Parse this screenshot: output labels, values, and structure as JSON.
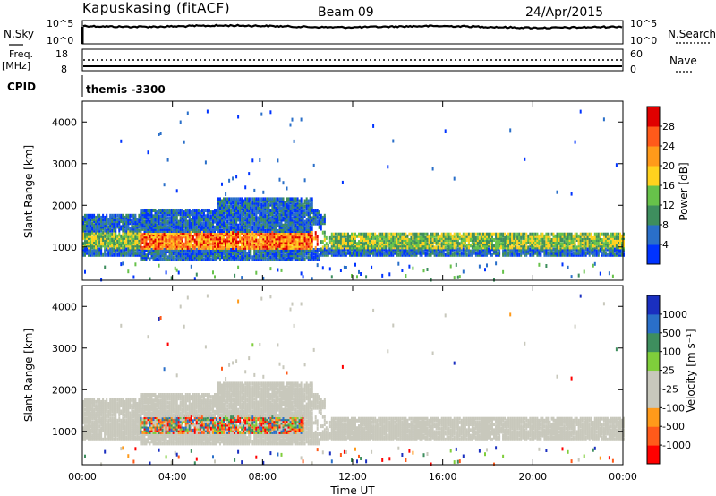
{
  "header": {
    "title": "Kapuskasing (fitACF)",
    "beam": "Beam 09",
    "date": "24/Apr/2015"
  },
  "cpid_text": "themis -3300",
  "top_panels": {
    "noise": {
      "left_label": "N.Sky",
      "right_label": "N.Search",
      "left_ticks": [
        "10^5",
        "10^0"
      ],
      "right_ticks": [
        "10^5",
        "10^0"
      ]
    },
    "freq": {
      "left_label": "Freq.",
      "left_unit": "[MHz]",
      "right_label": "Nave",
      "left_ticks": [
        "18",
        "8"
      ],
      "right_ticks": [
        "60",
        "0"
      ]
    },
    "cpid_label": "CPID"
  },
  "colors": {
    "power_scale": [
      "#0033ff",
      "#2a6fc9",
      "#3e8e5e",
      "#67c24a",
      "#ffd21e",
      "#ff9a1a",
      "#ff5a1a",
      "#e00000"
    ],
    "velocity_scale": [
      "#ff0000",
      "#ff5a1a",
      "#ff9a1a",
      "#c8c8bc",
      "#c8c8bc",
      "#7fce3b",
      "#3e8e5e",
      "#2a6fc9",
      "#1a2fc0"
    ],
    "ground_scatter": "#c8c8bc"
  },
  "chart_data": [
    {
      "type": "heatmap",
      "name": "power",
      "ylabel": "Slant Range [km]",
      "yticks": [
        1000,
        2000,
        3000,
        4000
      ],
      "ylim": [
        200,
        4500
      ],
      "xlim": [
        0,
        24
      ],
      "colorbar": {
        "label": "Power [dB]",
        "ticks": [
          "4",
          "8",
          "12",
          "16",
          "20",
          "24",
          "28"
        ],
        "range": [
          0,
          32
        ]
      }
    },
    {
      "type": "heatmap",
      "name": "velocity",
      "ylabel": "Slant Range [km]",
      "yticks": [
        1000,
        2000,
        3000,
        4000
      ],
      "ylim": [
        200,
        4500
      ],
      "xlim": [
        0,
        24
      ],
      "colorbar": {
        "label": "Velocity [m s⁻¹]",
        "ticks": [
          "1000",
          "500",
          "100",
          "25",
          "-25",
          "-100",
          "-500",
          "-1000"
        ]
      }
    }
  ],
  "x_axis": {
    "label": "Time UT",
    "ticks": [
      "00:00",
      "04:00",
      "08:00",
      "12:00",
      "16:00",
      "20:00",
      "00:00"
    ]
  }
}
